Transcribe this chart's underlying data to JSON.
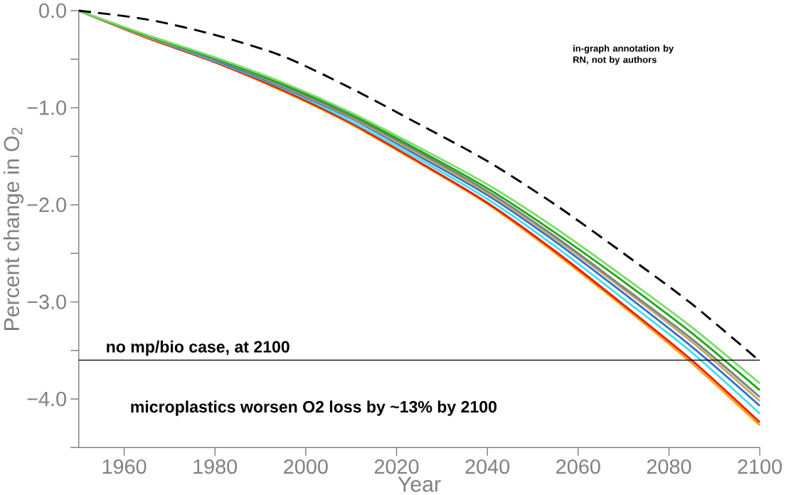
{
  "chart_data": {
    "type": "line",
    "xlabel": "Year",
    "ylabel": "Percent change in O$_{2}$",
    "annotations": [
      "in-graph annotation by RN, not by authors",
      "microplastics worsen O2 loss by ~13% by 2100"
    ],
    "x": [
      1950,
      1965,
      1980,
      1995,
      2010,
      2025,
      2040,
      2055,
      2070,
      2085,
      2100
    ],
    "series": [
      {
        "color": "#ffa000",
        "values": [
          0,
          -0.28,
          -0.53,
          -0.83,
          -1.17,
          -1.57,
          -1.99,
          -2.5,
          -3.05,
          -3.63,
          -4.27
        ]
      },
      {
        "color": "#e82010",
        "values": [
          0,
          -0.28,
          -0.53,
          -0.82,
          -1.16,
          -1.56,
          -1.98,
          -2.48,
          -3.03,
          -3.6,
          -4.24
        ]
      },
      {
        "color": "#40e0f0",
        "values": [
          0,
          -0.27,
          -0.52,
          -0.8,
          -1.14,
          -1.53,
          -1.94,
          -2.43,
          -2.97,
          -3.52,
          -4.15
        ]
      },
      {
        "color": "#3070d0",
        "values": [
          0,
          -0.27,
          -0.51,
          -0.79,
          -1.11,
          -1.5,
          -1.9,
          -2.38,
          -2.91,
          -3.46,
          -4.07
        ]
      },
      {
        "color": "#c8a860",
        "values": [
          0,
          -0.27,
          -0.5,
          -0.78,
          -1.1,
          -1.48,
          -1.88,
          -2.35,
          -2.87,
          -3.41,
          -4.02
        ]
      },
      {
        "color": "#808080",
        "values": [
          0,
          -0.26,
          -0.5,
          -0.77,
          -1.09,
          -1.46,
          -1.86,
          -2.33,
          -2.85,
          -3.38,
          -3.98
        ]
      },
      {
        "color": "#1aa81a",
        "values": [
          0,
          -0.26,
          -0.49,
          -0.76,
          -1.07,
          -1.44,
          -1.83,
          -2.29,
          -2.79,
          -3.32,
          -3.91
        ]
      },
      {
        "color": "#7fdc6a",
        "values": [
          0,
          -0.25,
          -0.48,
          -0.74,
          -1.05,
          -1.41,
          -1.79,
          -2.24,
          -2.74,
          -3.26,
          -3.84
        ]
      },
      {
        "color": "#000000",
        "line_style": "dashed",
        "values": [
          0,
          -0.09,
          -0.25,
          -0.47,
          -0.8,
          -1.17,
          -1.55,
          -2.0,
          -2.5,
          -3.02,
          -3.61
        ]
      }
    ],
    "xlim": [
      1950,
      2100
    ],
    "xticks": [
      1960,
      1980,
      2000,
      2020,
      2040,
      2060,
      2080,
      2100
    ],
    "ylim": [
      -4.5,
      0
    ],
    "yticks": [
      {
        "value": 0,
        "label": "0.0"
      },
      {
        "value": -0.5,
        "label": null
      },
      {
        "value": -1,
        "label": "−1.0"
      },
      {
        "value": -1.5,
        "label": null
      },
      {
        "value": -2,
        "label": "−2.0"
      },
      {
        "value": -2.5,
        "label": null
      },
      {
        "value": -3,
        "label": "−3.0"
      },
      {
        "value": -3.5,
        "label": null
      },
      {
        "value": -4,
        "label": "−4.0"
      },
      {
        "value": -4.5,
        "label": null
      }
    ],
    "ref_lines": [
      {
        "axis": "y",
        "value": -3.6,
        "label": "no mp/bio case, at 2100",
        "color": "#000000"
      }
    ],
    "grid": false
  }
}
